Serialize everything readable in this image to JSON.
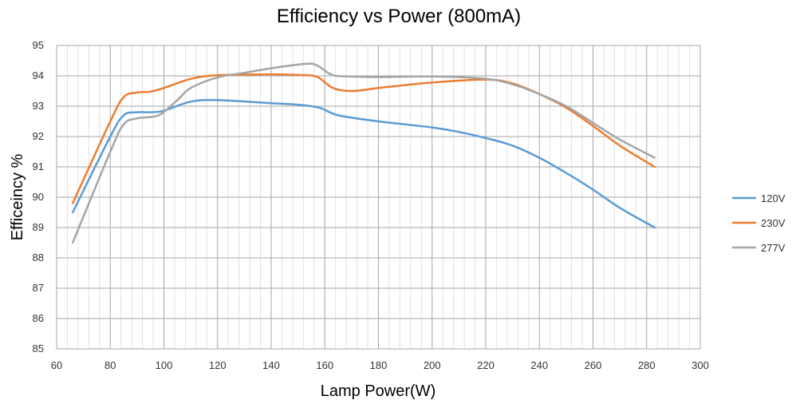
{
  "chart_data": {
    "type": "line",
    "title": "Efficiency vs Power (800mA)",
    "xlabel": "Lamp Power(W)",
    "ylabel": "Efficeincy  %",
    "xlim": [
      60,
      300
    ],
    "ylim": [
      85,
      95
    ],
    "x_ticks": [
      60,
      80,
      100,
      120,
      140,
      160,
      180,
      200,
      220,
      240,
      260,
      280,
      300
    ],
    "y_ticks": [
      85,
      86,
      87,
      88,
      89,
      90,
      91,
      92,
      93,
      94,
      95
    ],
    "grid": true,
    "legend_position": "right",
    "series": [
      {
        "name": "120V",
        "color": "#5b9bd5",
        "points": [
          [
            66,
            89.5
          ],
          [
            80,
            92.0
          ],
          [
            85,
            92.7
          ],
          [
            90,
            92.8
          ],
          [
            95,
            92.8
          ],
          [
            100,
            92.85
          ],
          [
            110,
            93.15
          ],
          [
            120,
            93.2
          ],
          [
            140,
            93.1
          ],
          [
            150,
            93.05
          ],
          [
            158,
            92.95
          ],
          [
            165,
            92.7
          ],
          [
            180,
            92.5
          ],
          [
            200,
            92.3
          ],
          [
            210,
            92.15
          ],
          [
            220,
            91.95
          ],
          [
            230,
            91.7
          ],
          [
            240,
            91.3
          ],
          [
            250,
            90.8
          ],
          [
            260,
            90.25
          ],
          [
            270,
            89.65
          ],
          [
            283,
            89.0
          ]
        ]
      },
      {
        "name": "230V",
        "color": "#ed7d31",
        "points": [
          [
            66,
            89.8
          ],
          [
            80,
            92.5
          ],
          [
            85,
            93.3
          ],
          [
            90,
            93.45
          ],
          [
            95,
            93.48
          ],
          [
            100,
            93.6
          ],
          [
            110,
            93.9
          ],
          [
            120,
            94.02
          ],
          [
            140,
            94.05
          ],
          [
            150,
            94.03
          ],
          [
            157,
            93.97
          ],
          [
            163,
            93.6
          ],
          [
            170,
            93.5
          ],
          [
            180,
            93.6
          ],
          [
            200,
            93.78
          ],
          [
            220,
            93.88
          ],
          [
            230,
            93.75
          ],
          [
            240,
            93.4
          ],
          [
            250,
            92.95
          ],
          [
            260,
            92.35
          ],
          [
            270,
            91.7
          ],
          [
            283,
            91.0
          ]
        ]
      },
      {
        "name": "277V",
        "color": "#a5a5a5",
        "points": [
          [
            66,
            88.5
          ],
          [
            80,
            91.5
          ],
          [
            85,
            92.4
          ],
          [
            90,
            92.6
          ],
          [
            98,
            92.7
          ],
          [
            105,
            93.2
          ],
          [
            110,
            93.6
          ],
          [
            120,
            93.95
          ],
          [
            130,
            94.1
          ],
          [
            140,
            94.25
          ],
          [
            150,
            94.37
          ],
          [
            155,
            94.4
          ],
          [
            158,
            94.3
          ],
          [
            163,
            94.02
          ],
          [
            170,
            93.98
          ],
          [
            180,
            93.96
          ],
          [
            200,
            93.98
          ],
          [
            220,
            93.9
          ],
          [
            230,
            93.72
          ],
          [
            240,
            93.4
          ],
          [
            250,
            93.0
          ],
          [
            260,
            92.45
          ],
          [
            270,
            91.9
          ],
          [
            283,
            91.3
          ]
        ]
      }
    ]
  }
}
